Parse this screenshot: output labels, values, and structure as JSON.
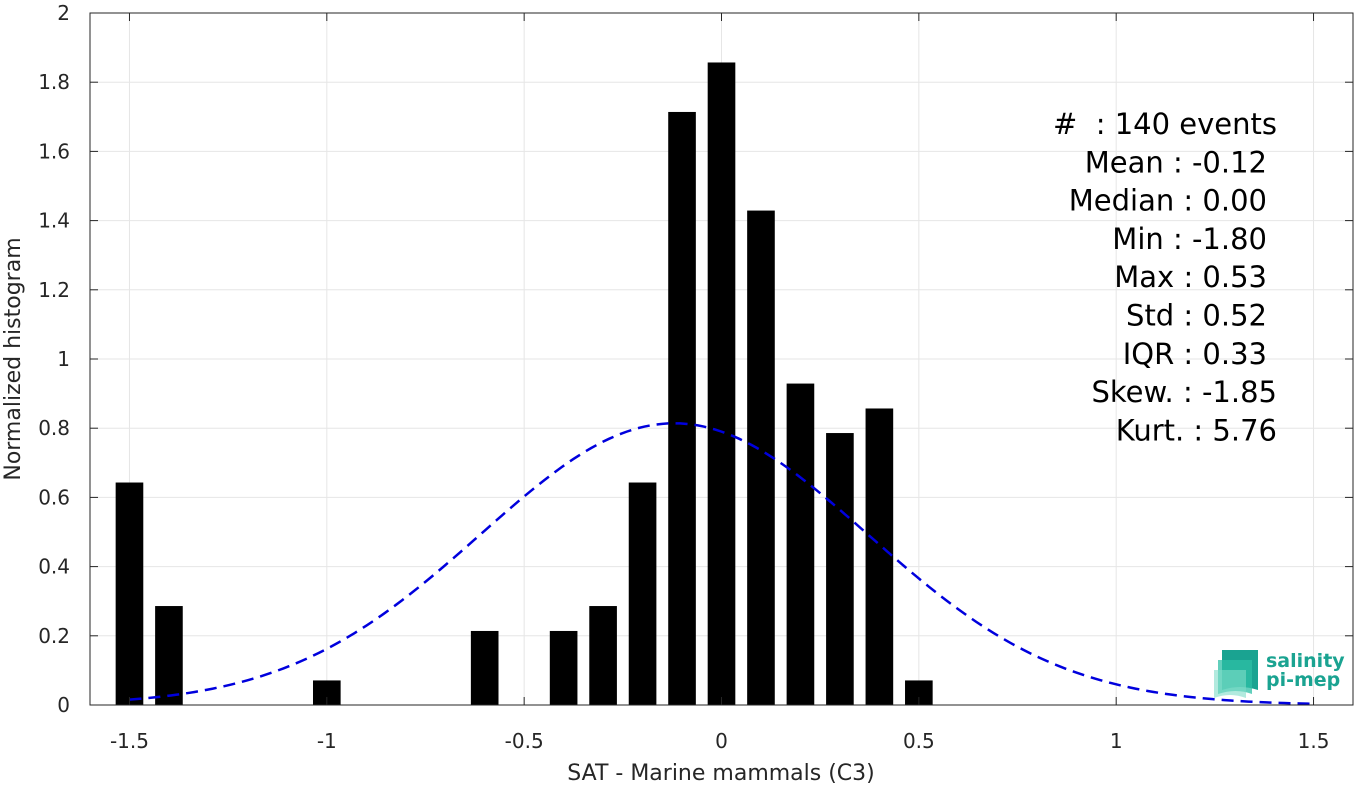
{
  "chart_data": {
    "type": "bar",
    "xlabel": "SAT - Marine mammals (C3)",
    "ylabel": "Normalized histogram",
    "xlim": [
      -1.6,
      1.6
    ],
    "ylim": [
      0,
      2
    ],
    "x_ticks": [
      -1.5,
      -1,
      -0.5,
      0,
      0.5,
      1,
      1.5
    ],
    "x_tick_labels": [
      "-1.5",
      "-1",
      "-0.5",
      "0",
      "0.5",
      "1",
      "1.5"
    ],
    "y_ticks": [
      0,
      0.2,
      0.4,
      0.6,
      0.8,
      1,
      1.2,
      1.4,
      1.6,
      1.8,
      2
    ],
    "y_tick_labels": [
      "0",
      "0.2",
      "0.4",
      "0.6",
      "0.8",
      "1",
      "1.2",
      "1.4",
      "1.6",
      "1.8",
      "2"
    ],
    "grid": true,
    "bar_color": "#000000",
    "bar_width": 0.07,
    "bars": [
      {
        "x": -1.5,
        "y": 0.643
      },
      {
        "x": -1.4,
        "y": 0.286
      },
      {
        "x": -1.0,
        "y": 0.071
      },
      {
        "x": -0.6,
        "y": 0.214
      },
      {
        "x": -0.4,
        "y": 0.214
      },
      {
        "x": -0.3,
        "y": 0.286
      },
      {
        "x": -0.2,
        "y": 0.643
      },
      {
        "x": -0.1,
        "y": 1.714
      },
      {
        "x": 0.0,
        "y": 1.857
      },
      {
        "x": 0.1,
        "y": 1.429
      },
      {
        "x": 0.2,
        "y": 0.929
      },
      {
        "x": 0.3,
        "y": 0.786
      },
      {
        "x": 0.4,
        "y": 0.857
      },
      {
        "x": 0.5,
        "y": 0.071
      }
    ],
    "fit_curve": {
      "type": "normal",
      "mean": -0.12,
      "std": 0.49,
      "x_range": [
        -1.5,
        1.5
      ],
      "color": "#0000dd",
      "style": "dashed"
    },
    "annotations": [
      "#  : 140 events",
      "Mean : -0.12",
      "Median : 0.00",
      "Min : -1.80",
      "Max : 0.53",
      "Std : 0.52",
      "IQR : 0.33",
      "Skew. : -1.85",
      "Kurt. : 5.76"
    ]
  },
  "logo": {
    "line1": "salinity",
    "line2": "pi-mep",
    "color": "#1aa391"
  }
}
